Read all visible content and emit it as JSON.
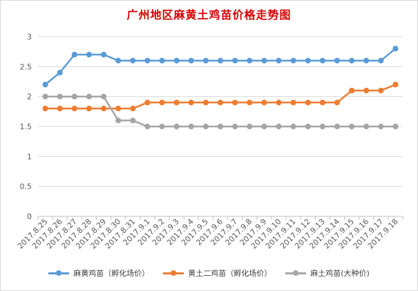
{
  "chart_data": {
    "type": "line",
    "title": "广州地区麻黄土鸡苗价格走势图",
    "xlabel": "",
    "ylabel": "",
    "ylim": [
      0,
      3
    ],
    "yticks": [
      "0",
      "0.5",
      "1",
      "1.5",
      "2",
      "2.5",
      "3"
    ],
    "grid": true,
    "legend_position": "bottom",
    "categories": [
      "2017.8.25",
      "2017.8.26",
      "2017.8.27",
      "2017.8.28",
      "2017.8.29",
      "2017.8.30",
      "2017.8.31",
      "2017.9.1",
      "2017.9.2",
      "2017.9.3",
      "2017.9.4",
      "2017.9.5",
      "2017.9.6",
      "2017.9.7",
      "2017.9.8",
      "2017.9.9",
      "2017.9.10",
      "2017.9.11",
      "2017.9.12",
      "2017.9.13",
      "2017.9.14",
      "2017.9.15",
      "2017.9.16",
      "2017.9.17",
      "2017.9.18"
    ],
    "series": [
      {
        "name": "麻黄鸡苗（孵化场价）",
        "color": "#5b9bd5",
        "values": [
          2.2,
          2.4,
          2.7,
          2.7,
          2.7,
          2.6,
          2.6,
          2.6,
          2.6,
          2.6,
          2.6,
          2.6,
          2.6,
          2.6,
          2.6,
          2.6,
          2.6,
          2.6,
          2.6,
          2.6,
          2.6,
          2.6,
          2.6,
          2.6,
          2.8
        ]
      },
      {
        "name": "黄土二鸡苗（孵化场价）",
        "color": "#ed7d31",
        "values": [
          1.8,
          1.8,
          1.8,
          1.8,
          1.8,
          1.8,
          1.8,
          1.9,
          1.9,
          1.9,
          1.9,
          1.9,
          1.9,
          1.9,
          1.9,
          1.9,
          1.9,
          1.9,
          1.9,
          1.9,
          1.9,
          2.1,
          2.1,
          2.1,
          2.2
        ]
      },
      {
        "name": "麻土鸡苗(大种价)",
        "color": "#a5a5a5",
        "values": [
          2.0,
          2.0,
          2.0,
          2.0,
          2.0,
          1.6,
          1.6,
          1.5,
          1.5,
          1.5,
          1.5,
          1.5,
          1.5,
          1.5,
          1.5,
          1.5,
          1.5,
          1.5,
          1.5,
          1.5,
          1.5,
          1.5,
          1.5,
          1.5,
          1.5
        ]
      }
    ]
  }
}
